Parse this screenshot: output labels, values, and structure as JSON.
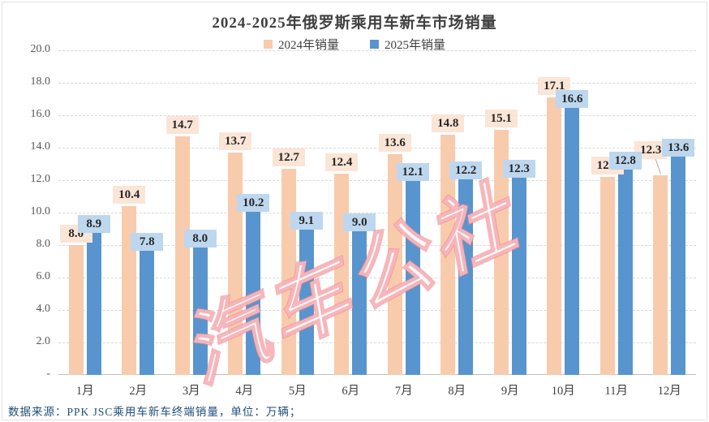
{
  "title": "2024-2025年俄罗斯乘用车新车市场销量",
  "legend": {
    "items": [
      {
        "label": "2024年销量",
        "color": "#F8CBAD"
      },
      {
        "label": "2025年销量",
        "color": "#5895CE"
      }
    ]
  },
  "watermark_text": "汽车公社",
  "source_note": "数据来源：PPK JSC乘用车新车终端销量，单位：万辆；",
  "chart_data": {
    "type": "bar",
    "title": "2024-2025年俄罗斯乘用车新车市场销量",
    "categories": [
      "1月",
      "2月",
      "3月",
      "4月",
      "5月",
      "6月",
      "7月",
      "8月",
      "9月",
      "10月",
      "11月",
      "12月"
    ],
    "series": [
      {
        "name": "2024年销量",
        "color": "#F8CBAD",
        "label_bg": "#FBE5D6",
        "values": [
          8.0,
          10.4,
          14.7,
          13.7,
          12.7,
          12.4,
          13.6,
          14.8,
          15.1,
          17.1,
          12.2,
          12.3
        ]
      },
      {
        "name": "2025年销量",
        "color": "#5895CE",
        "label_bg": "#BDD7EE",
        "values": [
          8.9,
          7.8,
          8.0,
          10.2,
          9.1,
          9.0,
          12.1,
          12.2,
          12.3,
          16.6,
          12.8,
          13.6
        ]
      }
    ],
    "xlabel": "",
    "ylabel": "",
    "ylim": [
      0,
      20
    ],
    "ytick_step": 2,
    "ytick_labels": [
      "-",
      "2.0",
      "4.0",
      "6.0",
      "8.0",
      "10.0",
      "12.0",
      "14.0",
      "16.0",
      "18.0",
      "20.0"
    ],
    "value_decimals": 1,
    "grid": "horizontal-dashed",
    "legend_position": "top",
    "label_callouts": [
      {
        "series": 0,
        "index": 11,
        "raise": 17,
        "shift": -12
      }
    ]
  }
}
